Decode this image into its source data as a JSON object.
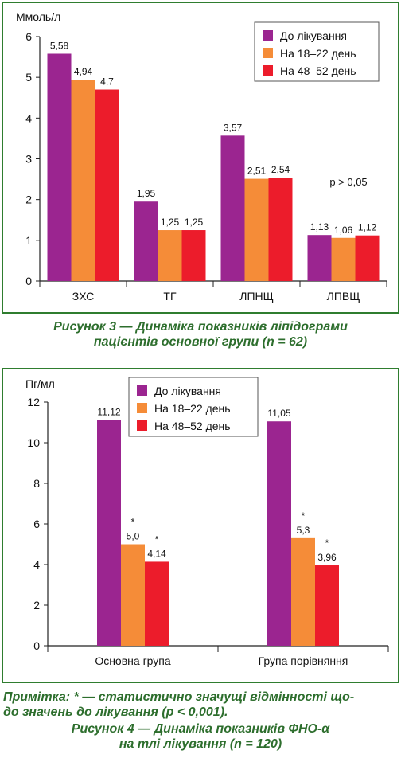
{
  "figure3": {
    "caption_line1": "Рисунок 3 — Динаміка показників ліпідограми",
    "caption_line2": "пацієнтів основної групи (n = 62)"
  },
  "figure4": {
    "note_line1": "Примітка: * — статистично значущі відмінності що-",
    "note_line2": "до значень до лікування (p < 0,001).",
    "caption_line1": "Рисунок 4 — Динаміка показників ФНО-α",
    "caption_line2": "на тлі лікування (n = 120)"
  },
  "chart_data": [
    {
      "type": "bar",
      "ylabel": "Ммоль/л",
      "ylim": [
        0,
        6
      ],
      "yticks": [
        "0",
        "1",
        "2",
        "3",
        "4",
        "5",
        "6"
      ],
      "categories": [
        "ЗХС",
        "ТГ",
        "ЛПНЩ",
        "ЛПВЩ"
      ],
      "series": [
        {
          "name": "До лікування",
          "color": "#9b2590",
          "values": [
            5.58,
            1.95,
            3.57,
            1.13
          ],
          "labels": [
            "5,58",
            "1,95",
            "3,57",
            "1,13"
          ]
        },
        {
          "name": "На 18–22 день",
          "color": "#f58c38",
          "values": [
            4.94,
            1.25,
            2.51,
            1.06
          ],
          "labels": [
            "4,94",
            "1,25",
            "2,51",
            "1,06"
          ]
        },
        {
          "name": "На 48–52 день",
          "color": "#ec1c2b",
          "values": [
            4.7,
            1.25,
            2.54,
            1.12
          ],
          "labels": [
            "4,7",
            "1,25",
            "2,54",
            "1,12"
          ]
        }
      ],
      "annotation": "p > 0,05",
      "legend_position": "top-right",
      "grid": false
    },
    {
      "type": "bar",
      "ylabel": "Пг/мл",
      "ylim": [
        0,
        12
      ],
      "yticks": [
        "0",
        "2",
        "4",
        "6",
        "8",
        "10",
        "12"
      ],
      "categories": [
        "Основна група",
        "Група порівняння"
      ],
      "series": [
        {
          "name": "До лікування",
          "color": "#9b2590",
          "values": [
            11.12,
            11.05
          ],
          "labels": [
            "11,12",
            "11,05"
          ],
          "marks": [
            "",
            ""
          ]
        },
        {
          "name": "На 18–22 день",
          "color": "#f58c38",
          "values": [
            5.0,
            5.3
          ],
          "labels": [
            "5,0",
            "5,3"
          ],
          "marks": [
            "*",
            "*"
          ]
        },
        {
          "name": "На 48–52 день",
          "color": "#ec1c2b",
          "values": [
            4.14,
            3.96
          ],
          "labels": [
            "4,14",
            "3,96"
          ],
          "marks": [
            "*",
            "*"
          ]
        }
      ],
      "legend_position": "top-center",
      "grid": false
    }
  ]
}
